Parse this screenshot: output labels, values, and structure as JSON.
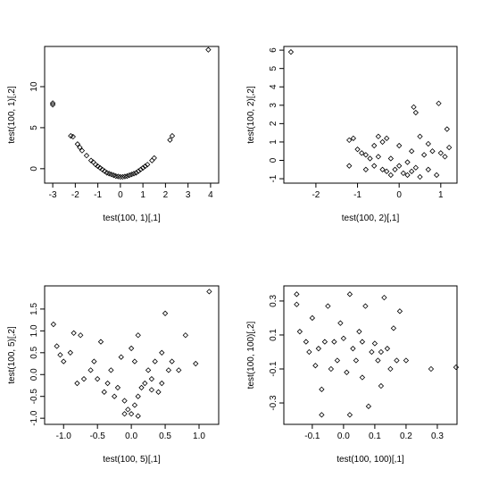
{
  "chart_data": [
    {
      "type": "scatter",
      "color": "#000000",
      "x_label": "test(100, 1)[,1]",
      "y_label": "test(100, 1)[,2]",
      "xlim": [
        -3.36,
        4.36
      ],
      "ylim": [
        -1.76,
        14.9
      ],
      "xticks": [
        -3,
        -2,
        -1,
        0,
        1,
        2,
        3,
        4
      ],
      "yticks": [
        0,
        5,
        10
      ],
      "x": [
        -3,
        -3,
        -2.2,
        -2.1,
        -1.9,
        -1.8,
        -1.7,
        -1.5,
        -1.3,
        -1.2,
        -1.1,
        -1,
        -0.9,
        -0.8,
        -0.7,
        -0.6,
        -0.5,
        -0.4,
        -0.3,
        -0.2,
        -0.1,
        0,
        0.1,
        0.2,
        0.3,
        0.4,
        0.5,
        0.6,
        0.7,
        0.8,
        0.9,
        1,
        1.1,
        1.2,
        1.4,
        1.5,
        2.2,
        2.3,
        3.9
      ],
      "y": [
        8,
        7.8,
        4,
        3.9,
        3,
        2.6,
        2.2,
        1.6,
        1.0,
        0.8,
        0.5,
        0.3,
        0.1,
        -0.1,
        -0.3,
        -0.5,
        -0.6,
        -0.7,
        -0.8,
        -0.9,
        -0.95,
        -1,
        -1,
        -0.95,
        -0.9,
        -0.8,
        -0.7,
        -0.6,
        -0.5,
        -0.3,
        -0.1,
        0.1,
        0.3,
        0.5,
        1.0,
        1.3,
        3.5,
        4.0,
        14.5
      ]
    },
    {
      "type": "scatter",
      "color": "#000000",
      "x_label": "test(100, 2)[,1]",
      "y_label": "test(100, 2)[,2]",
      "xlim": [
        -2.77,
        1.39
      ],
      "ylim": [
        -1.24,
        6.2
      ],
      "xticks": [
        -2,
        -1,
        0,
        1
      ],
      "yticks": [
        -1,
        0,
        1,
        2,
        3,
        4,
        5,
        6
      ],
      "x": [
        -2.6,
        -1.2,
        -1.1,
        -1.0,
        -0.9,
        -0.8,
        -0.7,
        -0.6,
        -0.5,
        -0.4,
        -0.3,
        -0.5,
        -0.4,
        -0.3,
        -0.2,
        -0.1,
        0,
        0.1,
        0.2,
        0.3,
        0.35,
        0.4,
        0.3,
        0.4,
        0.5,
        0.6,
        0.7,
        0.8,
        0.9,
        1.0,
        0.95,
        1.1,
        1.15,
        1.2,
        -1.2,
        -0.8,
        -0.6,
        0,
        0.2,
        0.5,
        -0.2,
        0.7
      ],
      "y": [
        5.9,
        1.1,
        1.2,
        0.6,
        0.4,
        0.3,
        0.1,
        -0.3,
        1.3,
        1.0,
        1.2,
        0.2,
        -0.5,
        -0.6,
        -0.8,
        -0.5,
        -0.3,
        -0.7,
        -0.8,
        -0.6,
        2.9,
        2.6,
        0.5,
        -0.4,
        1.3,
        0.3,
        -0.5,
        0.5,
        -0.8,
        0.4,
        3.1,
        0.2,
        1.7,
        0.7,
        -0.3,
        -0.5,
        0.8,
        0.8,
        -0.1,
        -0.9,
        0.1,
        0.9
      ]
    },
    {
      "type": "scatter",
      "color": "#000000",
      "x_label": "test(100, 5)[,1]",
      "y_label": "test(100, 5)[,2]",
      "xlim": [
        -1.28,
        1.29
      ],
      "ylim": [
        -1.14,
        2.03
      ],
      "xticks": [
        {
          "value": -1,
          "label": "-1.0"
        },
        -0.5,
        {
          "value": 0,
          "label": "0.0"
        },
        0.5,
        {
          "value": 1,
          "label": "1.0"
        }
      ],
      "yticks": [
        {
          "value": -1,
          "label": "-1.0"
        },
        -0.5,
        {
          "value": 0,
          "label": "0.0"
        },
        0.5,
        {
          "value": 1,
          "label": "1.0"
        },
        1.5
      ],
      "x": [
        -1.15,
        -1.1,
        -1.05,
        -1,
        -0.9,
        -0.85,
        -0.75,
        -0.8,
        -0.7,
        -0.6,
        -0.55,
        -0.5,
        -0.45,
        -0.4,
        -0.35,
        -0.3,
        -0.25,
        -0.2,
        -0.15,
        -0.1,
        -0.05,
        0,
        0.05,
        0.1,
        0.15,
        0.05,
        0,
        0.1,
        0.2,
        0.25,
        0.3,
        0.35,
        0.4,
        0.45,
        0.5,
        0.55,
        0.6,
        0.7,
        0.8,
        0.95,
        1.15,
        0.1,
        -0.1,
        0.3,
        0.45
      ],
      "y": [
        1.15,
        0.65,
        0.45,
        0.3,
        0.5,
        0.95,
        0.9,
        -0.2,
        -0.1,
        0.1,
        0.3,
        -0.1,
        0.75,
        -0.4,
        -0.2,
        0.1,
        -0.5,
        -0.3,
        0.4,
        -0.6,
        -0.8,
        -0.9,
        -0.7,
        -0.5,
        -0.3,
        0.3,
        0.6,
        0.9,
        -0.2,
        0.1,
        -0.1,
        0.3,
        -0.4,
        0.5,
        1.4,
        0.1,
        0.3,
        0.1,
        0.9,
        0.25,
        1.9,
        -0.95,
        -0.9,
        -0.35,
        -0.2
      ]
    },
    {
      "type": "scatter",
      "color": "#000000",
      "x_label": "test(100, 100)[,1]",
      "y_label": "test(100, 100)[,2]",
      "xlim": [
        -0.191,
        0.363
      ],
      "ylim": [
        -0.426,
        0.389
      ],
      "xticks": [
        -0.1,
        {
          "value": 0,
          "label": "0.0"
        },
        0.1,
        0.2,
        0.3
      ],
      "yticks": [
        -0.3,
        -0.1,
        0.1,
        0.3
      ],
      "x": [
        -0.15,
        -0.15,
        -0.14,
        -0.12,
        -0.1,
        -0.09,
        -0.08,
        -0.07,
        -0.06,
        -0.05,
        -0.04,
        -0.03,
        -0.02,
        -0.01,
        0,
        0.01,
        0.02,
        0.03,
        0.04,
        0.05,
        0.06,
        0.07,
        0.08,
        0.09,
        0.1,
        0.11,
        0.12,
        0.13,
        0.14,
        0.15,
        0.16,
        0.17,
        0.18,
        0.2,
        0.28,
        0.36,
        -0.07,
        0.02,
        -0.11,
        0.06,
        0.12
      ],
      "y": [
        0.34,
        0.28,
        0.12,
        0.06,
        0.2,
        -0.08,
        0.02,
        -0.22,
        0.06,
        0.27,
        -0.1,
        0.06,
        -0.05,
        0.17,
        0.08,
        -0.12,
        0.34,
        0.02,
        -0.05,
        0.12,
        -0.15,
        0.27,
        -0.32,
        0.0,
        0.05,
        -0.05,
        -0.2,
        0.32,
        0.02,
        -0.1,
        0.14,
        -0.05,
        0.24,
        -0.05,
        -0.1,
        -0.09,
        -0.37,
        -0.37,
        0.0,
        0.06,
        0.0
      ]
    }
  ]
}
